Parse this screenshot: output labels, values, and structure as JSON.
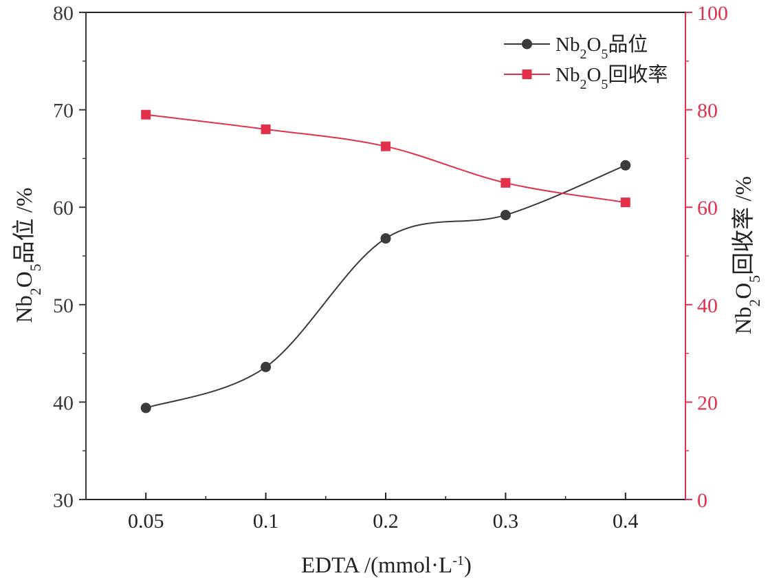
{
  "chart_data": {
    "type": "line",
    "categories": [
      "0.05",
      "0.1",
      "0.2",
      "0.3",
      "0.4"
    ],
    "x_axis": {
      "label_main": "EDTA /(mmol·L",
      "label_sup": "-1",
      "label_tail": ")"
    },
    "y_left": {
      "label_parts": [
        "Nb",
        "2",
        "O",
        "5",
        "品位 /%"
      ],
      "range": [
        30,
        80
      ],
      "ticks": [
        "30",
        "40",
        "50",
        "60",
        "70",
        "80"
      ],
      "color": "#3a3a3f"
    },
    "y_right": {
      "label_parts": [
        "Nb",
        "2",
        "O",
        "5",
        "回收率 /%"
      ],
      "range": [
        0,
        100
      ],
      "ticks": [
        "0",
        "20",
        "40",
        "60",
        "80",
        "100"
      ],
      "color": "#e3304a"
    },
    "series": [
      {
        "name_parts": [
          "Nb",
          "2",
          "O",
          "5",
          "品位"
        ],
        "axis": "left",
        "marker": "circle",
        "color": "#3a3a3f",
        "values": [
          39.4,
          43.6,
          56.8,
          59.2,
          64.3
        ]
      },
      {
        "name_parts": [
          "Nb",
          "2",
          "O",
          "5",
          "回收率"
        ],
        "axis": "right",
        "marker": "square",
        "color": "#e3304a",
        "values": [
          79.0,
          76.0,
          72.5,
          65.0,
          61.0
        ]
      }
    ],
    "legend": {
      "position": "top-right"
    },
    "grid": false
  }
}
